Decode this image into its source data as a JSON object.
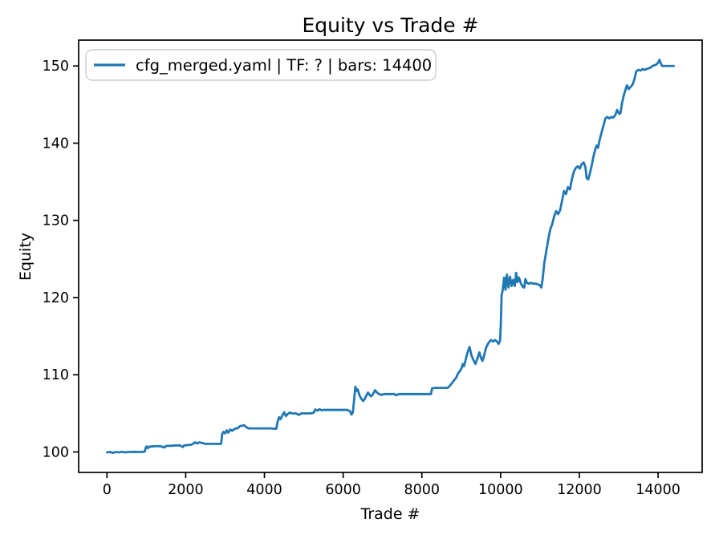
{
  "figure": {
    "background": "#ffffff",
    "spine_color": "#000000",
    "tick_color": "#000000"
  },
  "chart_data": {
    "type": "line",
    "title": "Equity vs Trade #",
    "xlabel": "Trade #",
    "ylabel": "Equity",
    "xlim": [
      -720,
      15120
    ],
    "ylim": [
      97.35,
      153.35
    ],
    "xticks": [
      0,
      2000,
      4000,
      6000,
      8000,
      10000,
      12000,
      14000
    ],
    "yticks": [
      100,
      110,
      120,
      130,
      140,
      150
    ],
    "grid": false,
    "legend_position": "upper left",
    "series": [
      {
        "name": "cfg_merged.yaml | TF: ? | bars: 14400",
        "color": "#1f77b4",
        "line_width": 2.8,
        "points": [
          [
            0,
            99.95
          ],
          [
            80,
            100.0
          ],
          [
            150,
            99.88
          ],
          [
            220,
            100.0
          ],
          [
            300,
            99.95
          ],
          [
            380,
            100.02
          ],
          [
            460,
            99.95
          ],
          [
            540,
            100.0
          ],
          [
            620,
            100.0
          ],
          [
            700,
            100.02
          ],
          [
            800,
            100.0
          ],
          [
            900,
            100.0
          ],
          [
            960,
            100.05
          ],
          [
            985,
            100.55
          ],
          [
            1010,
            100.72
          ],
          [
            1040,
            100.5
          ],
          [
            1080,
            100.68
          ],
          [
            1150,
            100.72
          ],
          [
            1250,
            100.75
          ],
          [
            1350,
            100.75
          ],
          [
            1460,
            100.58
          ],
          [
            1490,
            100.75
          ],
          [
            1550,
            100.8
          ],
          [
            1650,
            100.8
          ],
          [
            1750,
            100.85
          ],
          [
            1850,
            100.85
          ],
          [
            1930,
            100.65
          ],
          [
            1960,
            100.85
          ],
          [
            2050,
            100.9
          ],
          [
            2150,
            100.95
          ],
          [
            2200,
            101.1
          ],
          [
            2240,
            101.25
          ],
          [
            2290,
            101.1
          ],
          [
            2350,
            101.25
          ],
          [
            2420,
            101.15
          ],
          [
            2500,
            101.05
          ],
          [
            2650,
            101.05
          ],
          [
            2800,
            101.05
          ],
          [
            2900,
            101.05
          ],
          [
            2925,
            102.3
          ],
          [
            2960,
            102.6
          ],
          [
            3000,
            102.4
          ],
          [
            3040,
            102.8
          ],
          [
            3080,
            102.5
          ],
          [
            3130,
            102.9
          ],
          [
            3180,
            102.75
          ],
          [
            3250,
            103.0
          ],
          [
            3330,
            103.1
          ],
          [
            3380,
            103.35
          ],
          [
            3430,
            103.4
          ],
          [
            3490,
            103.45
          ],
          [
            3540,
            103.2
          ],
          [
            3600,
            103.05
          ],
          [
            3700,
            103.05
          ],
          [
            3850,
            103.05
          ],
          [
            4000,
            103.05
          ],
          [
            4150,
            103.05
          ],
          [
            4300,
            103.0
          ],
          [
            4335,
            103.9
          ],
          [
            4370,
            104.5
          ],
          [
            4410,
            104.25
          ],
          [
            4460,
            104.8
          ],
          [
            4500,
            105.15
          ],
          [
            4545,
            104.65
          ],
          [
            4590,
            104.9
          ],
          [
            4640,
            105.1
          ],
          [
            4700,
            105.0
          ],
          [
            4800,
            105.0
          ],
          [
            4870,
            104.8
          ],
          [
            4940,
            105.0
          ],
          [
            5050,
            105.0
          ],
          [
            5180,
            105.0
          ],
          [
            5255,
            105.1
          ],
          [
            5290,
            105.5
          ],
          [
            5350,
            105.35
          ],
          [
            5400,
            105.55
          ],
          [
            5450,
            105.4
          ],
          [
            5520,
            105.45
          ],
          [
            5650,
            105.45
          ],
          [
            5800,
            105.45
          ],
          [
            5950,
            105.45
          ],
          [
            6100,
            105.45
          ],
          [
            6170,
            105.3
          ],
          [
            6210,
            104.85
          ],
          [
            6245,
            105.1
          ],
          [
            6280,
            106.8
          ],
          [
            6310,
            108.45
          ],
          [
            6340,
            107.9
          ],
          [
            6370,
            108.1
          ],
          [
            6410,
            107.4
          ],
          [
            6460,
            106.9
          ],
          [
            6510,
            106.6
          ],
          [
            6550,
            106.9
          ],
          [
            6590,
            107.3
          ],
          [
            6630,
            107.7
          ],
          [
            6670,
            107.4
          ],
          [
            6710,
            107.2
          ],
          [
            6760,
            107.5
          ],
          [
            6810,
            108.0
          ],
          [
            6860,
            107.7
          ],
          [
            6910,
            107.5
          ],
          [
            6960,
            107.4
          ],
          [
            7050,
            107.5
          ],
          [
            7150,
            107.5
          ],
          [
            7300,
            107.5
          ],
          [
            7340,
            107.35
          ],
          [
            7420,
            107.5
          ],
          [
            7550,
            107.5
          ],
          [
            7700,
            107.5
          ],
          [
            7850,
            107.5
          ],
          [
            8000,
            107.5
          ],
          [
            8150,
            107.5
          ],
          [
            8230,
            107.5
          ],
          [
            8260,
            108.25
          ],
          [
            8350,
            108.3
          ],
          [
            8500,
            108.3
          ],
          [
            8650,
            108.3
          ],
          [
            8700,
            108.5
          ],
          [
            8760,
            108.9
          ],
          [
            8820,
            109.3
          ],
          [
            8870,
            109.6
          ],
          [
            8920,
            110.2
          ],
          [
            8970,
            110.5
          ],
          [
            9010,
            110.9
          ],
          [
            9040,
            111.4
          ],
          [
            9070,
            111.1
          ],
          [
            9110,
            111.9
          ],
          [
            9160,
            112.9
          ],
          [
            9210,
            113.6
          ],
          [
            9260,
            112.5
          ],
          [
            9310,
            111.9
          ],
          [
            9360,
            111.4
          ],
          [
            9410,
            112.1
          ],
          [
            9460,
            112.9
          ],
          [
            9500,
            112.2
          ],
          [
            9540,
            111.8
          ],
          [
            9580,
            112.5
          ],
          [
            9630,
            113.5
          ],
          [
            9690,
            114.1
          ],
          [
            9750,
            114.5
          ],
          [
            9810,
            114.3
          ],
          [
            9860,
            114.5
          ],
          [
            9910,
            114.3
          ],
          [
            9950,
            114.0
          ],
          [
            9985,
            114.4
          ],
          [
            10005,
            116.5
          ],
          [
            10025,
            120.3
          ],
          [
            10055,
            121.0
          ],
          [
            10090,
            122.6
          ],
          [
            10125,
            121.0
          ],
          [
            10160,
            123.0
          ],
          [
            10200,
            121.3
          ],
          [
            10240,
            122.7
          ],
          [
            10280,
            121.5
          ],
          [
            10320,
            122.3
          ],
          [
            10360,
            121.5
          ],
          [
            10395,
            123.2
          ],
          [
            10430,
            122.0
          ],
          [
            10465,
            122.6
          ],
          [
            10510,
            121.9
          ],
          [
            10560,
            121.4
          ],
          [
            10600,
            121.3
          ],
          [
            10630,
            122.4
          ],
          [
            10670,
            121.9
          ],
          [
            10720,
            121.8
          ],
          [
            10770,
            121.9
          ],
          [
            10830,
            121.8
          ],
          [
            10890,
            121.8
          ],
          [
            10950,
            121.7
          ],
          [
            11000,
            121.6
          ],
          [
            11035,
            121.3
          ],
          [
            11070,
            122.5
          ],
          [
            11110,
            124.5
          ],
          [
            11160,
            126.0
          ],
          [
            11210,
            127.5
          ],
          [
            11260,
            128.8
          ],
          [
            11310,
            129.5
          ],
          [
            11360,
            130.5
          ],
          [
            11410,
            131.2
          ],
          [
            11460,
            130.8
          ],
          [
            11510,
            131.3
          ],
          [
            11560,
            132.5
          ],
          [
            11610,
            133.8
          ],
          [
            11660,
            133.4
          ],
          [
            11710,
            134.3
          ],
          [
            11760,
            134.0
          ],
          [
            11810,
            135.3
          ],
          [
            11860,
            136.3
          ],
          [
            11910,
            136.8
          ],
          [
            11960,
            137.0
          ],
          [
            12010,
            136.7
          ],
          [
            12060,
            137.3
          ],
          [
            12110,
            137.5
          ],
          [
            12155,
            136.9
          ],
          [
            12185,
            135.5
          ],
          [
            12225,
            135.3
          ],
          [
            12265,
            136.0
          ],
          [
            12310,
            137.0
          ],
          [
            12360,
            138.3
          ],
          [
            12410,
            139.3
          ],
          [
            12440,
            139.7
          ],
          [
            12475,
            139.4
          ],
          [
            12510,
            140.3
          ],
          [
            12560,
            141.3
          ],
          [
            12610,
            142.2
          ],
          [
            12660,
            143.2
          ],
          [
            12710,
            143.4
          ],
          [
            12760,
            143.2
          ],
          [
            12810,
            143.4
          ],
          [
            12860,
            143.3
          ],
          [
            12910,
            143.6
          ],
          [
            12960,
            144.3
          ],
          [
            13010,
            143.8
          ],
          [
            13045,
            143.9
          ],
          [
            13085,
            145.2
          ],
          [
            13125,
            146.1
          ],
          [
            13165,
            146.8
          ],
          [
            13210,
            147.5
          ],
          [
            13255,
            147.0
          ],
          [
            13305,
            147.3
          ],
          [
            13355,
            147.6
          ],
          [
            13405,
            148.4
          ],
          [
            13445,
            149.3
          ],
          [
            13500,
            149.5
          ],
          [
            13555,
            149.4
          ],
          [
            13610,
            149.6
          ],
          [
            13660,
            149.5
          ],
          [
            13710,
            149.6
          ],
          [
            13760,
            149.7
          ],
          [
            13810,
            149.8
          ],
          [
            13860,
            150.0
          ],
          [
            13910,
            150.1
          ],
          [
            13960,
            150.2
          ],
          [
            14010,
            150.5
          ],
          [
            14035,
            150.8
          ],
          [
            14065,
            150.4
          ],
          [
            14100,
            150.0
          ],
          [
            14160,
            150.0
          ],
          [
            14230,
            150.0
          ],
          [
            14320,
            150.0
          ],
          [
            14400,
            150.0
          ]
        ]
      }
    ],
    "legend": {
      "edge_color": "#cccccc",
      "face_color": "#ffffff"
    }
  }
}
